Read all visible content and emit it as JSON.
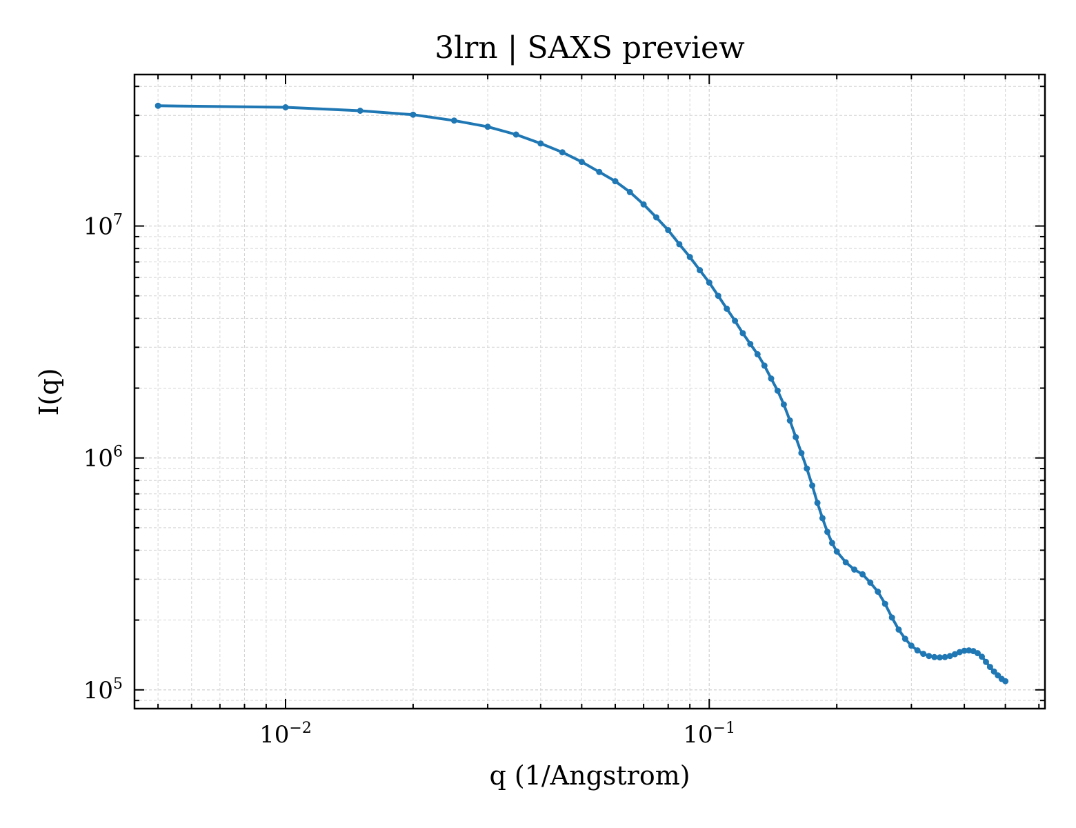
{
  "chart_data": {
    "type": "line",
    "title": "3lrn | SAXS preview",
    "xlabel": "q (1/Angstrom)",
    "ylabel": "I(q)",
    "xscale": "log",
    "yscale": "log",
    "xlim": [
      0.0044,
      0.62
    ],
    "ylim": [
      83000,
      45000000
    ],
    "grid": true,
    "legend": "none",
    "line_color": "#1f77b4",
    "x_ticks": [
      {
        "base": "10",
        "exp": "−2",
        "value": 0.01
      },
      {
        "base": "10",
        "exp": "−1",
        "value": 0.1
      }
    ],
    "y_ticks": [
      {
        "base": "10",
        "exp": "5",
        "value": 100000
      },
      {
        "base": "10",
        "exp": "6",
        "value": 1000000
      },
      {
        "base": "10",
        "exp": "7",
        "value": 10000000
      }
    ],
    "series": [
      {
        "x": [
          0.005,
          0.01,
          0.015,
          0.02,
          0.025,
          0.03,
          0.035,
          0.04,
          0.045,
          0.05,
          0.055,
          0.06,
          0.065,
          0.07,
          0.075,
          0.08,
          0.085,
          0.09,
          0.095,
          0.1,
          0.105,
          0.11,
          0.115,
          0.12,
          0.125,
          0.13,
          0.135,
          0.14,
          0.145,
          0.15,
          0.155,
          0.16,
          0.165,
          0.17,
          0.175,
          0.18,
          0.185,
          0.19,
          0.195,
          0.2,
          0.21,
          0.22,
          0.23,
          0.24,
          0.25,
          0.26,
          0.27,
          0.28,
          0.29,
          0.3,
          0.31,
          0.32,
          0.33,
          0.34,
          0.35,
          0.36,
          0.37,
          0.38,
          0.39,
          0.4,
          0.41,
          0.42,
          0.43,
          0.44,
          0.45,
          0.46,
          0.47,
          0.48,
          0.49,
          0.5
        ],
        "y": [
          33000000,
          32500000,
          31400000,
          30200000,
          28500000,
          26800000,
          24800000,
          22700000,
          20800000,
          18900000,
          17100000,
          15600000,
          14000000,
          12400000,
          10900000,
          9600000,
          8350000,
          7350000,
          6450000,
          5700000,
          5000000,
          4400000,
          3900000,
          3450000,
          3100000,
          2800000,
          2500000,
          2200000,
          1950000,
          1700000,
          1450000,
          1230000,
          1050000,
          900000,
          760000,
          640000,
          550000,
          480000,
          430000,
          395000,
          355000,
          330000,
          315000,
          290000,
          265000,
          235000,
          205000,
          182000,
          166000,
          155000,
          148000,
          143000,
          140000,
          138500,
          138000,
          138500,
          140000,
          142500,
          145500,
          147500,
          148000,
          147000,
          144000,
          139000,
          132000,
          125500,
          120000,
          115500,
          111500,
          109000
        ]
      }
    ]
  }
}
